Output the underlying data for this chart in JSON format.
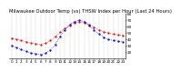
{
  "title": "Milwaukee Outdoor Temp (vs) THSW Index per Hour (Last 24 Hours)",
  "bg_color": "#ffffff",
  "plot_bg": "#ffffff",
  "grid_color": "#999999",
  "hours": [
    0,
    1,
    2,
    3,
    4,
    5,
    6,
    7,
    8,
    9,
    10,
    11,
    12,
    13,
    14,
    15,
    16,
    17,
    18,
    19,
    20,
    21,
    22,
    23
  ],
  "temp_red": [
    42,
    40,
    38,
    36,
    34,
    33,
    32,
    34,
    38,
    44,
    51,
    57,
    62,
    66,
    68,
    66,
    63,
    59,
    55,
    52,
    50,
    48,
    47,
    46
  ],
  "thsw_blue": [
    30,
    27,
    24,
    21,
    18,
    17,
    16,
    18,
    23,
    32,
    44,
    55,
    63,
    68,
    70,
    68,
    62,
    55,
    48,
    43,
    40,
    38,
    37,
    36
  ],
  "ylim_min": 10,
  "ylim_max": 80,
  "ytick_values": [
    20,
    30,
    40,
    50,
    60,
    70,
    80
  ],
  "red_color": "#dd0000",
  "blue_color": "#0000cc",
  "title_fontsize": 3.8,
  "tick_fontsize": 3.0,
  "marker_size": 1.2,
  "line_width": 0.5
}
